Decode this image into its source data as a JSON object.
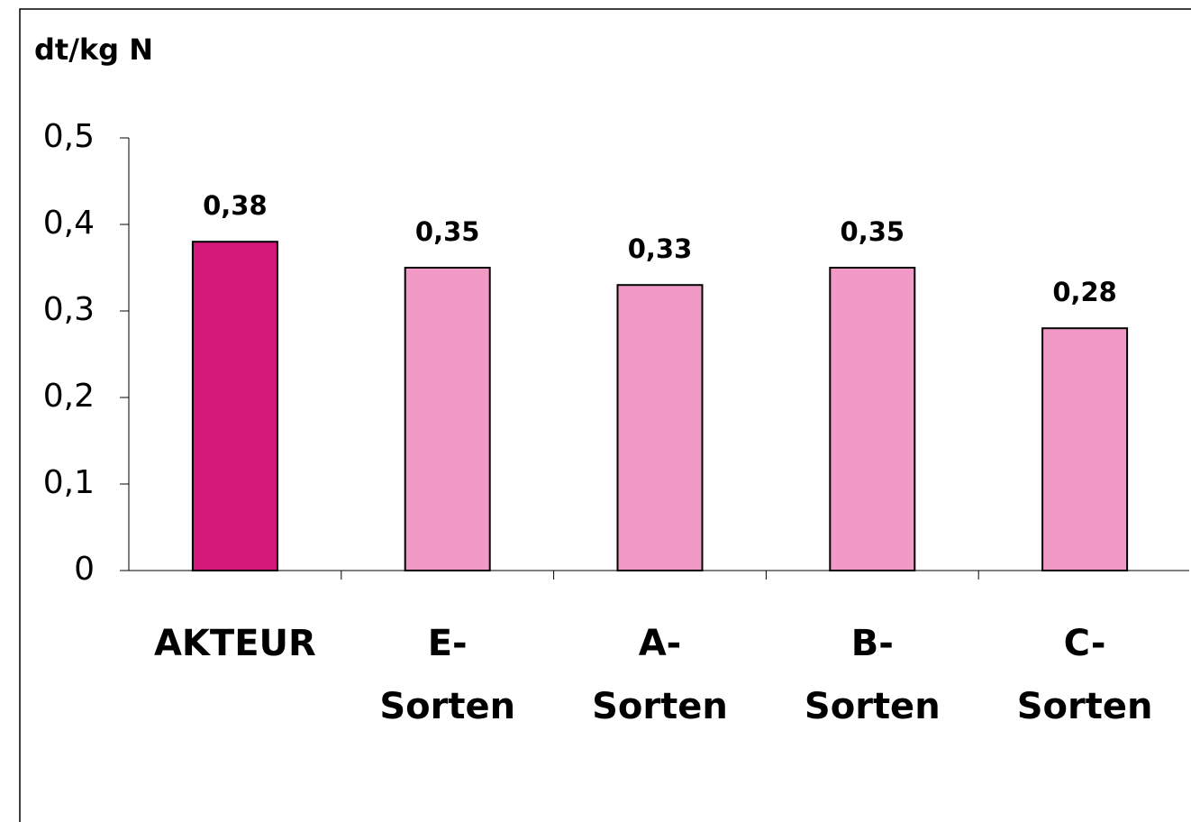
{
  "chart_data": {
    "type": "bar",
    "y_label": "dt/kg N",
    "categories": [
      "AKTEUR",
      "E-\nSorten",
      "A-\nSorten",
      "B-\nSorten",
      "C-\nSorten"
    ],
    "values": [
      0.38,
      0.35,
      0.33,
      0.35,
      0.28
    ],
    "value_labels": [
      "0,38",
      "0,35",
      "0,33",
      "0,35",
      "0,28"
    ],
    "colors": [
      "#d4197a",
      "#f29ac6",
      "#f29ac6",
      "#f29ac6",
      "#f29ac6"
    ],
    "ylim": [
      0,
      0.5
    ],
    "yticks": [
      0,
      {
        "value": 0.1,
        "label": "0,1"
      },
      {
        "value": 0.2,
        "label": "0,2"
      },
      {
        "value": 0.3,
        "label": "0,3"
      },
      {
        "value": 0.4,
        "label": "0,4"
      },
      {
        "value": 0.5,
        "label": "0,5"
      }
    ],
    "grid": false
  }
}
